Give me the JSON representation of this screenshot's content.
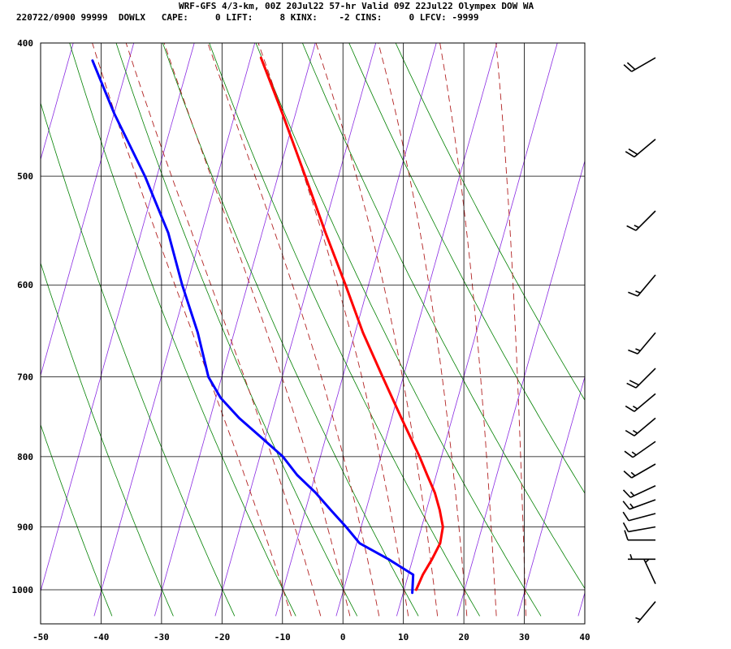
{
  "header": {
    "title": "WRF-GFS 4/3-km, 00Z 20Jul22 57-hr Valid 09Z 22Jul22 Olympex DOW WA",
    "stats": "220722/0900 99999  DOWLX   CAPE:     0 LIFT:     8 KINX:    -2 CINS:     0 LFCV: -9999"
  },
  "chart_data": {
    "type": "line",
    "subtype": "skew-T log-P sounding",
    "xlabel": "",
    "ylabel": "",
    "temp_ticks": [
      -50,
      -40,
      -30,
      -20,
      -10,
      0,
      10,
      20,
      30,
      40
    ],
    "pressure_ticks": [
      400,
      500,
      600,
      700,
      800,
      900,
      1000
    ],
    "xlim": [
      -50,
      40
    ],
    "ylim": [
      1040,
      400
    ],
    "grid": true,
    "series": [
      {
        "name": "temperature",
        "color": "#ff0000",
        "pressure": [
          1000,
          975,
          950,
          925,
          900,
          875,
          850,
          825,
          800,
          750,
          700,
          650,
          600,
          550,
          500,
          450,
          410
        ],
        "values": [
          12.0,
          12.4,
          13.2,
          13.8,
          13.5,
          12.2,
          10.6,
          8.5,
          6.4,
          1.6,
          -3.4,
          -8.7,
          -13.8,
          -19.5,
          -25.5,
          -32.2,
          -38.3
        ]
      },
      {
        "name": "dewpoint",
        "color": "#0000ff",
        "pressure": [
          1005,
          975,
          950,
          925,
          900,
          875,
          850,
          825,
          800,
          775,
          750,
          725,
          700,
          650,
          600,
          550,
          500,
          450,
          412
        ],
        "values": [
          11.5,
          10.8,
          6.0,
          0.5,
          -2.5,
          -5.8,
          -9.1,
          -13.0,
          -16.2,
          -20.6,
          -25.2,
          -29.2,
          -32.2,
          -36.0,
          -40.8,
          -45.5,
          -52.0,
          -60.0,
          -66.0
        ]
      }
    ],
    "isotherms": [
      -100,
      -90,
      -80,
      -70,
      -60,
      -50,
      -40,
      -30,
      -20,
      -10,
      0,
      10,
      20,
      30,
      40
    ],
    "dry_adiabats_theta_C": [
      -40,
      -30,
      -20,
      -10,
      0,
      10,
      20,
      30,
      40,
      50,
      60
    ],
    "moist_adiabats_thetaw_C": [
      -10,
      -5,
      0,
      5,
      10,
      15,
      20,
      25,
      30
    ],
    "mixing_ratios_gkg": [
      1,
      2,
      3,
      5,
      8,
      12,
      20
    ],
    "wind_barbs": [
      {
        "p": 410,
        "dir": 240,
        "kt": 20
      },
      {
        "p": 470,
        "dir": 230,
        "kt": 20
      },
      {
        "p": 530,
        "dir": 225,
        "kt": 15
      },
      {
        "p": 590,
        "dir": 220,
        "kt": 15
      },
      {
        "p": 650,
        "dir": 220,
        "kt": 15
      },
      {
        "p": 690,
        "dir": 225,
        "kt": 20
      },
      {
        "p": 720,
        "dir": 230,
        "kt": 15
      },
      {
        "p": 750,
        "dir": 230,
        "kt": 15
      },
      {
        "p": 780,
        "dir": 235,
        "kt": 15
      },
      {
        "p": 810,
        "dir": 240,
        "kt": 15
      },
      {
        "p": 840,
        "dir": 245,
        "kt": 15
      },
      {
        "p": 860,
        "dir": 250,
        "kt": 15
      },
      {
        "p": 880,
        "dir": 255,
        "kt": 10
      },
      {
        "p": 900,
        "dir": 260,
        "kt": 10
      },
      {
        "p": 920,
        "dir": 270,
        "kt": 10
      },
      {
        "p": 950,
        "dir": 270,
        "kt": 5
      },
      {
        "p": 990,
        "dir": 335,
        "kt": 5
      },
      {
        "p": 1020,
        "dir": 220,
        "kt": 5
      }
    ]
  }
}
